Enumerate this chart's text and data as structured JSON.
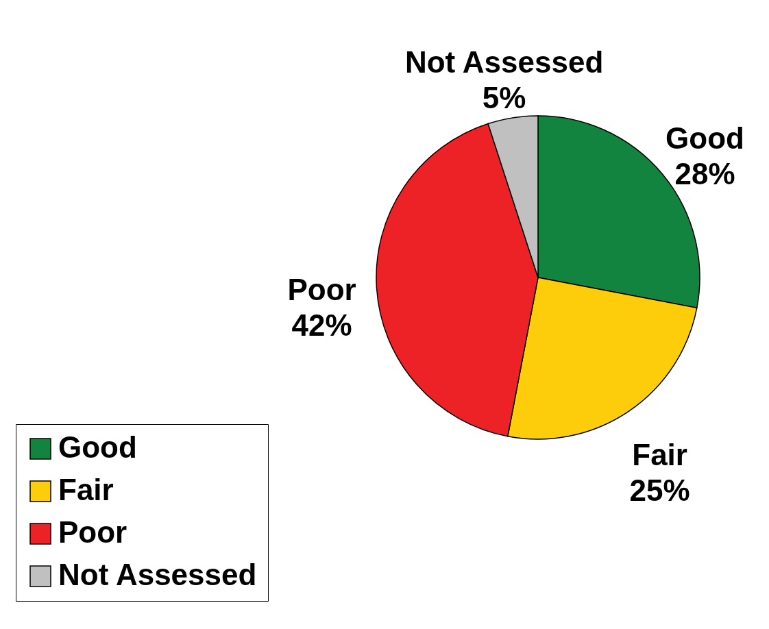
{
  "chart_data": {
    "type": "pie",
    "categories": [
      "Good",
      "Fair",
      "Poor",
      "Not Assessed"
    ],
    "values": [
      28,
      25,
      42,
      5
    ],
    "colors": [
      "#138440",
      "#fdcc0a",
      "#ec2227",
      "#c0c0c0"
    ],
    "value_labels": [
      "28%",
      "25%",
      "42%",
      "5%"
    ],
    "legend": "bottom left"
  }
}
